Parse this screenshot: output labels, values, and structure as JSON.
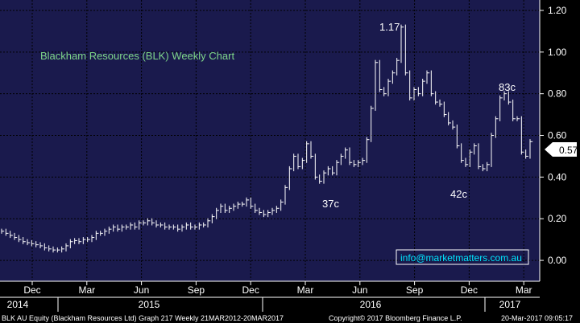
{
  "chart_data": {
    "type": "line",
    "title": "Blackham Resources (BLK) Weekly Chart",
    "ylim": [
      -0.1,
      1.25
    ],
    "yticks": [
      "0.00",
      "0.20",
      "0.40",
      "0.60",
      "0.80",
      "1.00",
      "1.20"
    ],
    "ytick_values": [
      0,
      0.2,
      0.4,
      0.6,
      0.8,
      1.0,
      1.2
    ],
    "months": [
      "Dec",
      "Mar",
      "Jun",
      "Sep",
      "Dec",
      "Mar",
      "Jun",
      "Sep",
      "Dec",
      "Mar"
    ],
    "years": [
      "2014",
      "2015",
      "2016",
      "2017"
    ],
    "last_price_label": "0.57",
    "series": [
      {
        "values": [
          0.14,
          0.13,
          0.12,
          0.11,
          0.1,
          0.09,
          0.085,
          0.08,
          0.075,
          0.07,
          0.06,
          0.055,
          0.05,
          0.05,
          0.055,
          0.07,
          0.09,
          0.095,
          0.09,
          0.1,
          0.1,
          0.11,
          0.13,
          0.13,
          0.14,
          0.15,
          0.16,
          0.15,
          0.16,
          0.16,
          0.17,
          0.16,
          0.18,
          0.18,
          0.19,
          0.18,
          0.17,
          0.17,
          0.16,
          0.16,
          0.16,
          0.15,
          0.16,
          0.17,
          0.16,
          0.16,
          0.17,
          0.17,
          0.19,
          0.21,
          0.24,
          0.26,
          0.24,
          0.25,
          0.26,
          0.27,
          0.27,
          0.29,
          0.26,
          0.24,
          0.23,
          0.22,
          0.23,
          0.24,
          0.25,
          0.28,
          0.35,
          0.44,
          0.5,
          0.45,
          0.48,
          0.56,
          0.5,
          0.4,
          0.38,
          0.42,
          0.44,
          0.42,
          0.47,
          0.5,
          0.53,
          0.47,
          0.46,
          0.47,
          0.48,
          0.58,
          0.73,
          0.95,
          0.82,
          0.8,
          0.86,
          0.9,
          0.96,
          1.12,
          0.9,
          0.78,
          0.82,
          0.8,
          0.86,
          0.9,
          0.8,
          0.76,
          0.75,
          0.7,
          0.66,
          0.64,
          0.55,
          0.48,
          0.46,
          0.52,
          0.55,
          0.45,
          0.44,
          0.46,
          0.6,
          0.68,
          0.78,
          0.8,
          0.76,
          0.68,
          0.68,
          0.52,
          0.5,
          0.57
        ],
        "annotations": [
          {
            "label": "1.17",
            "value": 1.17
          },
          {
            "label": "37c",
            "value": 0.37
          },
          {
            "label": "42c",
            "value": 0.42
          },
          {
            "label": "83c",
            "value": 0.83
          }
        ]
      }
    ]
  },
  "callout": "info@marketmatters.com.au",
  "footer": {
    "left": "BLK AU Equity (Blackham Resources Ltd) Graph 217  Weekly 21MAR2012-20MAR2017",
    "center": "Copyright© 2017 Bloomberg Finance L.P.",
    "right": "20-Mar-2017 09:05:17"
  }
}
